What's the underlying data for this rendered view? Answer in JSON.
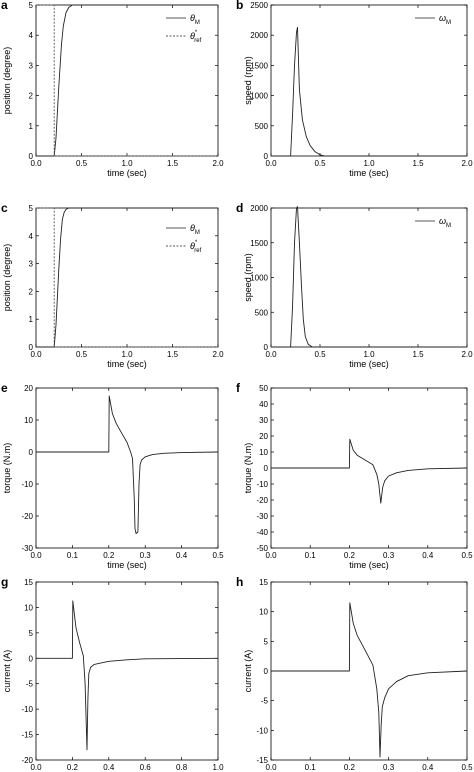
{
  "chart_data": [
    {
      "panel": "a",
      "type": "line",
      "xlabel": "time (sec)",
      "ylabel": "position (degree)",
      "xlim": [
        0,
        2.0
      ],
      "ylim": [
        0,
        5
      ],
      "xticks": [
        "0.0",
        "0.5",
        "1.0",
        "1.5",
        "2.0"
      ],
      "yticks": [
        "0",
        "1",
        "2",
        "3",
        "4",
        "5"
      ],
      "legend": "top-right",
      "series": [
        {
          "name": "θM",
          "style": "solid",
          "x": [
            0,
            0.2,
            0.22,
            0.25,
            0.28,
            0.3,
            0.33,
            0.36,
            0.4,
            0.45,
            2.0
          ],
          "y": [
            0,
            0,
            0.6,
            2.3,
            3.7,
            4.3,
            4.75,
            4.92,
            5.0,
            5.0,
            5.0
          ]
        },
        {
          "name": "θref*",
          "style": "dashed",
          "x": [
            0,
            0.2,
            0.2,
            2.0
          ],
          "y": [
            5,
            5,
            0,
            0
          ]
        }
      ]
    },
    {
      "panel": "b",
      "type": "line",
      "xlabel": "time (sec)",
      "ylabel": "speed (rpm)",
      "xlim": [
        0,
        2.0
      ],
      "ylim": [
        0,
        2500
      ],
      "xticks": [
        "0.0",
        "0.5",
        "1.0",
        "1.5",
        "2.0"
      ],
      "yticks": [
        "0",
        "500",
        "1000",
        "1500",
        "2000",
        "2500"
      ],
      "legend": "top-right",
      "series": [
        {
          "name": "ωM",
          "style": "solid",
          "x": [
            0,
            0.2,
            0.22,
            0.24,
            0.26,
            0.27,
            0.29,
            0.32,
            0.36,
            0.4,
            0.45,
            0.5,
            0.55,
            2.0
          ],
          "y": [
            0,
            0,
            700,
            1500,
            2050,
            2130,
            1100,
            600,
            320,
            170,
            70,
            20,
            0,
            0
          ]
        }
      ]
    },
    {
      "panel": "c",
      "type": "line",
      "xlabel": "time (sec)",
      "ylabel": "position (degree)",
      "xlim": [
        0,
        2.0
      ],
      "ylim": [
        0,
        5
      ],
      "xticks": [
        "0.0",
        "0.5",
        "1.0",
        "1.5",
        "2.0"
      ],
      "yticks": [
        "0",
        "1",
        "2",
        "3",
        "4",
        "5"
      ],
      "legend": "right",
      "series": [
        {
          "name": "θM",
          "style": "solid",
          "x": [
            0,
            0.2,
            0.22,
            0.25,
            0.27,
            0.29,
            0.31,
            0.33,
            0.36,
            0.4,
            2.0
          ],
          "y": [
            0,
            0,
            0.8,
            2.8,
            3.9,
            4.6,
            4.85,
            4.95,
            5.0,
            5.0,
            5.0
          ]
        },
        {
          "name": "θref*",
          "style": "dashed",
          "x": [
            0,
            0.2,
            0.2,
            2.0
          ],
          "y": [
            5,
            5,
            0,
            0
          ]
        }
      ]
    },
    {
      "panel": "d",
      "type": "line",
      "xlabel": "time (sec)",
      "ylabel": "speed (rpm)",
      "xlim": [
        0,
        2.0
      ],
      "ylim": [
        0,
        2000
      ],
      "xticks": [
        "0.0",
        "0.5",
        "1.0",
        "1.5",
        "2.0"
      ],
      "yticks": [
        "0",
        "500",
        "1000",
        "1500",
        "2000"
      ],
      "legend": "top-right",
      "series": [
        {
          "name": "ωM",
          "style": "solid",
          "x": [
            0,
            0.2,
            0.22,
            0.24,
            0.26,
            0.27,
            0.29,
            0.31,
            0.33,
            0.35,
            0.38,
            0.42,
            2.0
          ],
          "y": [
            0,
            0,
            600,
            1500,
            2000,
            2020,
            1500,
            900,
            400,
            150,
            40,
            0,
            0
          ]
        }
      ]
    },
    {
      "panel": "e",
      "type": "line",
      "xlabel": "time (sec)",
      "ylabel": "torque (N.m)",
      "xlim": [
        0,
        0.5
      ],
      "ylim": [
        -30,
        20
      ],
      "xticks": [
        "0.0",
        "0.1",
        "0.2",
        "0.3",
        "0.4",
        "0.5"
      ],
      "yticks": [
        "-30",
        "-20",
        "-10",
        "0",
        "10",
        "20"
      ],
      "series": [
        {
          "name": "",
          "style": "solid",
          "x": [
            0,
            0.2,
            0.201,
            0.21,
            0.22,
            0.235,
            0.25,
            0.26,
            0.265,
            0.27,
            0.272,
            0.275,
            0.28,
            0.283,
            0.286,
            0.29,
            0.3,
            0.32,
            0.35,
            0.4,
            0.5
          ],
          "y": [
            0,
            0,
            17.5,
            12,
            9,
            6,
            3,
            0,
            -2,
            -15,
            -24,
            -25.5,
            -25,
            -10,
            -4,
            -2.5,
            -1.5,
            -0.8,
            -0.4,
            -0.2,
            0
          ]
        }
      ]
    },
    {
      "panel": "f",
      "type": "line",
      "xlabel": "time (sec)",
      "ylabel": "torque (N.m)",
      "xlim": [
        0,
        0.5
      ],
      "ylim": [
        -50,
        50
      ],
      "xticks": [
        "0.0",
        "0.1",
        "0.2",
        "0.3",
        "0.4",
        "0.5"
      ],
      "yticks": [
        "-50",
        "-40",
        "-30",
        "-20",
        "-10",
        "0",
        "10",
        "20",
        "30",
        "40",
        "50"
      ],
      "series": [
        {
          "name": "",
          "style": "solid",
          "x": [
            0,
            0.2,
            0.201,
            0.21,
            0.22,
            0.24,
            0.26,
            0.27,
            0.275,
            0.28,
            0.285,
            0.29,
            0.3,
            0.32,
            0.35,
            0.4,
            0.5
          ],
          "y": [
            0,
            0,
            18,
            11,
            8,
            5,
            2,
            -4,
            -10,
            -22,
            -12,
            -8,
            -5,
            -3,
            -1.5,
            -0.5,
            0
          ]
        }
      ]
    },
    {
      "panel": "g",
      "type": "line",
      "xlabel": "time (sec)",
      "ylabel": "current (A)",
      "xlim": [
        0,
        1.0
      ],
      "ylim": [
        -20,
        15
      ],
      "xticks": [
        "0.0",
        "0.2",
        "0.4",
        "0.6",
        "0.8",
        "1.0"
      ],
      "yticks": [
        "-20",
        "-15",
        "-10",
        "-5",
        "0",
        "5",
        "10",
        "15"
      ],
      "series": [
        {
          "name": "",
          "style": "solid",
          "x": [
            0,
            0.2,
            0.202,
            0.22,
            0.24,
            0.26,
            0.27,
            0.275,
            0.28,
            0.285,
            0.29,
            0.3,
            0.32,
            0.4,
            0.5,
            0.6,
            1.0
          ],
          "y": [
            0,
            0,
            11.3,
            6,
            3,
            0.5,
            -5,
            -12,
            -18,
            -8,
            -3,
            -1.8,
            -1.2,
            -0.6,
            -0.3,
            -0.1,
            0
          ]
        }
      ]
    },
    {
      "panel": "h",
      "type": "line",
      "xlabel": "time (sec)",
      "ylabel": "current (A)",
      "xlim": [
        0,
        0.5
      ],
      "ylim": [
        -15,
        15
      ],
      "xticks": [
        "0.0",
        "0.1",
        "0.2",
        "0.3",
        "0.4",
        "0.5"
      ],
      "yticks": [
        "-15",
        "-10",
        "-5",
        "0",
        "5",
        "10",
        "15"
      ],
      "series": [
        {
          "name": "",
          "style": "solid",
          "x": [
            0,
            0.2,
            0.201,
            0.21,
            0.22,
            0.24,
            0.26,
            0.27,
            0.275,
            0.278,
            0.281,
            0.284,
            0.29,
            0.3,
            0.32,
            0.35,
            0.4,
            0.5
          ],
          "y": [
            0,
            0,
            11.5,
            8,
            6,
            3.5,
            1,
            -3,
            -7,
            -14.5,
            -9,
            -6,
            -4.5,
            -3,
            -1.8,
            -0.8,
            -0.3,
            0
          ]
        }
      ]
    }
  ]
}
